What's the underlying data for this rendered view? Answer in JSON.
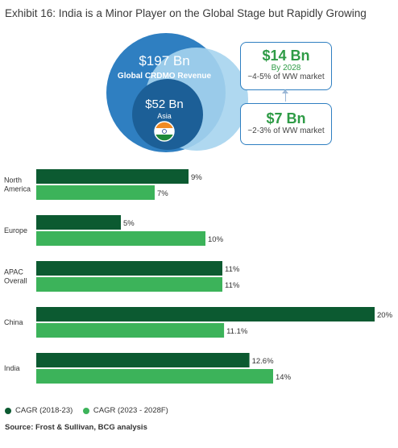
{
  "title": "Exhibit 16: India is a Minor Player on the Global Stage but Rapidly Growing",
  "globe": {
    "outer_value": "$197 Bn",
    "outer_label": "Global CRDMO Revenue",
    "inner_value": "$52 Bn",
    "inner_label": "Asia"
  },
  "box_top": {
    "value": "$14 Bn",
    "subtitle": "By 2028",
    "share": "~4-5% of WW market"
  },
  "box_bottom": {
    "value": "$7 Bn",
    "share": "~2-3% of WW market"
  },
  "colors": {
    "dark_green": "#0c5a31",
    "light_green": "#3cb35a",
    "globe_blue": "#2f7fc1"
  },
  "chart_data": {
    "type": "bar",
    "orientation": "horizontal",
    "categories": [
      "North\nAmerica",
      "Europe",
      "APAC\nOverall",
      "China",
      "India"
    ],
    "series": [
      {
        "name": "CAGR (2018-23)",
        "values": [
          9,
          5,
          11,
          20,
          12.6
        ],
        "labels": [
          "9%",
          "5%",
          "11%",
          "20%",
          "12.6%"
        ]
      },
      {
        "name": "CAGR (2023 - 2028F)",
        "values": [
          7,
          10,
          11,
          11.1,
          14
        ],
        "labels": [
          "7%",
          "10%",
          "11%",
          "11.1%",
          "14%"
        ]
      }
    ],
    "xlim": [
      0,
      20
    ],
    "legend_position": "bottom-left"
  },
  "legend": {
    "series1": "CAGR (2018-23)",
    "series2": "CAGR (2023 - 2028F)"
  },
  "source": "Source: Frost & Sullivan, BCG analysis"
}
